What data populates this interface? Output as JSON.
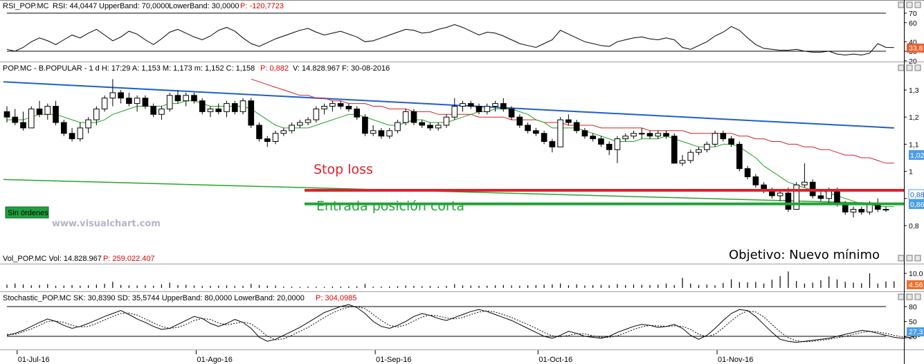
{
  "colors": {
    "up_candle": "#ffffff",
    "down_candle": "#000000",
    "rsi_line": "#000000",
    "sma_short": "#20a020",
    "sma_long": "#d02020",
    "trend_blue": "#1f5fc8",
    "support_green": "#28a428",
    "stop_red": "#e0202a",
    "entry_green": "#22a238",
    "stoch_k": "#000000",
    "stoch_d": "#000000",
    "price_tag_blue": "#4a9ee8",
    "price_tag_orange": "#f07030",
    "rsi_tag_orange": "#e86030"
  },
  "rsi_panel": {
    "symbol": "RSI_POP.MC",
    "rsi_label": "RSI: 44,0447",
    "upper_label": "UpperBand: 70,0000",
    "lower_label": "LowerBand: 30,0000",
    "p_label": "P: -120,7723",
    "ticks": [
      "70",
      "60",
      "40",
      "30",
      "20"
    ],
    "last_tag": "33,8"
  },
  "price_panel": {
    "header_main": "POP.MC - B.POPULAR - 1 d  H: 17:29  A: 1,153  M: 1,173  m: 1,152  C: 1,158",
    "header_p": "P: 0,882",
    "header_tail": "V: 14.828.967  F: 30-08-2016",
    "ticks": [
      "1,3",
      "1,2",
      "1,1",
      "1",
      "0,9",
      "0,8"
    ],
    "tag_upper": "1,02",
    "tag_mid": "0,88",
    "tag_lower": "0,86",
    "stop_label": "Stop loss",
    "entry_label": "Entrada posición corta",
    "target_label": "Objetivo: Nuevo mínimo",
    "orders_badge": "Sin órdenes",
    "watermark": "www.visualchart.com"
  },
  "volume_panel": {
    "header_main": "Vol_POP.MC  Vol: 14.828.967",
    "header_p": "P: 259.022.407",
    "ticks": [
      "10.0"
    ],
    "last_tag": "4.56"
  },
  "stoch_panel": {
    "header_main": "Stochastic_POP.MC  SK: 30,8390  SD: 35,5744  UpperBand: 80,0000  LowerBand: 20,0000",
    "header_p": "P: 304,0985",
    "ticks": [
      "80",
      "50",
      "20"
    ],
    "last_tag": "27,3"
  },
  "x_axis": {
    "labels": [
      "01-Jul-16",
      "01-Ago-16",
      "01-Sep-16",
      "01-Oct-16",
      "01-Nov-16"
    ]
  },
  "chart_data": {
    "type": "candlestick",
    "period": "1 d",
    "symbol": "POP.MC - B.POPULAR",
    "candles_ohlc": [
      [
        1.22,
        1.24,
        1.18,
        1.2
      ],
      [
        1.2,
        1.23,
        1.17,
        1.18
      ],
      [
        1.18,
        1.22,
        1.15,
        1.16
      ],
      [
        1.16,
        1.24,
        1.16,
        1.23
      ],
      [
        1.23,
        1.26,
        1.2,
        1.21
      ],
      [
        1.21,
        1.25,
        1.19,
        1.24
      ],
      [
        1.24,
        1.26,
        1.17,
        1.18
      ],
      [
        1.18,
        1.19,
        1.13,
        1.14
      ],
      [
        1.14,
        1.16,
        1.11,
        1.12
      ],
      [
        1.12,
        1.18,
        1.11,
        1.16
      ],
      [
        1.16,
        1.2,
        1.14,
        1.19
      ],
      [
        1.19,
        1.24,
        1.17,
        1.23
      ],
      [
        1.23,
        1.28,
        1.22,
        1.27
      ],
      [
        1.27,
        1.34,
        1.24,
        1.29
      ],
      [
        1.29,
        1.3,
        1.25,
        1.27
      ],
      [
        1.27,
        1.29,
        1.24,
        1.25
      ],
      [
        1.25,
        1.28,
        1.22,
        1.27
      ],
      [
        1.27,
        1.28,
        1.23,
        1.24
      ],
      [
        1.24,
        1.25,
        1.2,
        1.21
      ],
      [
        1.21,
        1.24,
        1.19,
        1.23
      ],
      [
        1.23,
        1.29,
        1.22,
        1.28
      ],
      [
        1.28,
        1.3,
        1.25,
        1.26
      ],
      [
        1.26,
        1.29,
        1.24,
        1.28
      ],
      [
        1.28,
        1.29,
        1.25,
        1.26
      ],
      [
        1.26,
        1.27,
        1.21,
        1.22
      ],
      [
        1.22,
        1.24,
        1.2,
        1.23
      ],
      [
        1.23,
        1.25,
        1.21,
        1.22
      ],
      [
        1.22,
        1.26,
        1.2,
        1.25
      ],
      [
        1.25,
        1.26,
        1.21,
        1.22
      ],
      [
        1.22,
        1.27,
        1.21,
        1.26
      ],
      [
        1.26,
        1.27,
        1.16,
        1.17
      ],
      [
        1.17,
        1.18,
        1.11,
        1.12
      ],
      [
        1.12,
        1.13,
        1.09,
        1.11
      ],
      [
        1.11,
        1.15,
        1.1,
        1.14
      ],
      [
        1.14,
        1.16,
        1.13,
        1.15
      ],
      [
        1.15,
        1.18,
        1.14,
        1.17
      ],
      [
        1.17,
        1.19,
        1.16,
        1.18
      ],
      [
        1.18,
        1.2,
        1.17,
        1.19
      ],
      [
        1.19,
        1.24,
        1.18,
        1.23
      ],
      [
        1.23,
        1.25,
        1.21,
        1.24
      ],
      [
        1.24,
        1.26,
        1.22,
        1.25
      ],
      [
        1.25,
        1.26,
        1.23,
        1.24
      ],
      [
        1.24,
        1.25,
        1.22,
        1.23
      ],
      [
        1.23,
        1.24,
        1.19,
        1.2
      ],
      [
        1.2,
        1.21,
        1.13,
        1.14
      ],
      [
        1.14,
        1.17,
        1.13,
        1.15
      ],
      [
        1.15,
        1.16,
        1.12,
        1.13
      ],
      [
        1.13,
        1.16,
        1.12,
        1.15
      ],
      [
        1.15,
        1.19,
        1.14,
        1.18
      ],
      [
        1.18,
        1.23,
        1.17,
        1.22
      ],
      [
        1.22,
        1.23,
        1.17,
        1.18
      ],
      [
        1.18,
        1.19,
        1.16,
        1.17
      ],
      [
        1.17,
        1.18,
        1.15,
        1.16
      ],
      [
        1.16,
        1.18,
        1.15,
        1.17
      ],
      [
        1.17,
        1.21,
        1.16,
        1.2
      ],
      [
        1.2,
        1.27,
        1.19,
        1.24
      ],
      [
        1.24,
        1.26,
        1.22,
        1.25
      ],
      [
        1.25,
        1.26,
        1.23,
        1.24
      ],
      [
        1.24,
        1.25,
        1.21,
        1.22
      ],
      [
        1.22,
        1.25,
        1.21,
        1.24
      ],
      [
        1.24,
        1.26,
        1.22,
        1.25
      ],
      [
        1.25,
        1.27,
        1.22,
        1.23
      ],
      [
        1.23,
        1.24,
        1.19,
        1.2
      ],
      [
        1.2,
        1.21,
        1.16,
        1.17
      ],
      [
        1.17,
        1.18,
        1.14,
        1.15
      ],
      [
        1.15,
        1.16,
        1.13,
        1.14
      ],
      [
        1.14,
        1.15,
        1.1,
        1.11
      ],
      [
        1.11,
        1.12,
        1.07,
        1.09
      ],
      [
        1.09,
        1.2,
        1.09,
        1.19
      ],
      [
        1.19,
        1.21,
        1.17,
        1.18
      ],
      [
        1.18,
        1.19,
        1.14,
        1.15
      ],
      [
        1.15,
        1.16,
        1.12,
        1.13
      ],
      [
        1.13,
        1.14,
        1.11,
        1.12
      ],
      [
        1.12,
        1.13,
        1.09,
        1.1
      ],
      [
        1.1,
        1.11,
        1.06,
        1.08
      ],
      [
        1.08,
        1.13,
        1.03,
        1.12
      ],
      [
        1.12,
        1.14,
        1.11,
        1.13
      ],
      [
        1.13,
        1.15,
        1.12,
        1.14
      ],
      [
        1.14,
        1.16,
        1.12,
        1.14
      ],
      [
        1.14,
        1.15,
        1.12,
        1.13
      ],
      [
        1.13,
        1.15,
        1.12,
        1.14
      ],
      [
        1.14,
        1.15,
        1.12,
        1.13
      ],
      [
        1.13,
        1.14,
        1.07,
        1.03
      ],
      [
        1.03,
        1.06,
        1.02,
        1.04
      ],
      [
        1.04,
        1.08,
        1.03,
        1.07
      ],
      [
        1.07,
        1.09,
        1.06,
        1.08
      ],
      [
        1.08,
        1.11,
        1.07,
        1.1
      ],
      [
        1.1,
        1.15,
        1.09,
        1.14
      ],
      [
        1.14,
        1.15,
        1.11,
        1.12
      ],
      [
        1.12,
        1.13,
        1.09,
        1.1
      ],
      [
        1.1,
        1.11,
        1.0,
        1.01
      ],
      [
        1.01,
        1.02,
        0.97,
        0.98
      ],
      [
        0.98,
        0.99,
        0.94,
        0.95
      ],
      [
        0.95,
        0.96,
        0.92,
        0.93
      ],
      [
        0.93,
        0.94,
        0.9,
        0.91
      ],
      [
        0.91,
        0.93,
        0.89,
        0.92
      ],
      [
        0.92,
        0.94,
        0.85,
        0.86
      ],
      [
        0.86,
        0.96,
        0.86,
        0.95
      ],
      [
        0.95,
        1.03,
        0.94,
        0.96
      ],
      [
        0.96,
        0.97,
        0.9,
        0.91
      ],
      [
        0.91,
        0.93,
        0.89,
        0.9
      ],
      [
        0.9,
        0.94,
        0.88,
        0.93
      ],
      [
        0.93,
        0.94,
        0.87,
        0.88
      ],
      [
        0.88,
        0.89,
        0.84,
        0.85
      ],
      [
        0.85,
        0.87,
        0.83,
        0.86
      ],
      [
        0.86,
        0.87,
        0.84,
        0.85
      ],
      [
        0.85,
        0.89,
        0.84,
        0.88
      ],
      [
        0.88,
        0.9,
        0.85,
        0.86
      ],
      [
        0.86,
        0.87,
        0.85,
        0.86
      ]
    ],
    "rsi": [
      32,
      30,
      34,
      40,
      44,
      41,
      37,
      42,
      47,
      44,
      49,
      53,
      47,
      41,
      45,
      51,
      48,
      42,
      37,
      43,
      50,
      53,
      49,
      45,
      42,
      46,
      52,
      55,
      51,
      44,
      38,
      35,
      39,
      43,
      46,
      49,
      52,
      54,
      50,
      47,
      49,
      51,
      48,
      45,
      40,
      41,
      44,
      47,
      50,
      53,
      52,
      49,
      50,
      53,
      55,
      58,
      55,
      51,
      47,
      50,
      49,
      46,
      42,
      38,
      36,
      34,
      38,
      42,
      52,
      48,
      44,
      40,
      38,
      36,
      35,
      40,
      42,
      44,
      45,
      43,
      42,
      44,
      42,
      34,
      32,
      36,
      40,
      46,
      50,
      56,
      52,
      44,
      37,
      33,
      32,
      31,
      31,
      32,
      30,
      29,
      29,
      30,
      27,
      26,
      27,
      26,
      28,
      38,
      34,
      33.8
    ],
    "sma_short": [
      1.19,
      1.19,
      1.19,
      1.2,
      1.21,
      1.21,
      1.21,
      1.2,
      1.19,
      1.18,
      1.18,
      1.18,
      1.19,
      1.21,
      1.22,
      1.23,
      1.24,
      1.24,
      1.24,
      1.24,
      1.25,
      1.25,
      1.26,
      1.26,
      1.25,
      1.24,
      1.24,
      1.24,
      1.24,
      1.24,
      1.23,
      1.21,
      1.19,
      1.17,
      1.16,
      1.16,
      1.16,
      1.16,
      1.17,
      1.18,
      1.19,
      1.2,
      1.21,
      1.21,
      1.2,
      1.19,
      1.18,
      1.17,
      1.17,
      1.18,
      1.19,
      1.19,
      1.18,
      1.18,
      1.18,
      1.19,
      1.2,
      1.21,
      1.22,
      1.22,
      1.23,
      1.23,
      1.23,
      1.22,
      1.21,
      1.19,
      1.18,
      1.16,
      1.16,
      1.16,
      1.16,
      1.15,
      1.14,
      1.13,
      1.12,
      1.11,
      1.11,
      1.11,
      1.12,
      1.12,
      1.12,
      1.13,
      1.12,
      1.11,
      1.1,
      1.09,
      1.09,
      1.09,
      1.1,
      1.1,
      1.09,
      1.07,
      1.05,
      1.02,
      1.0,
      0.98,
      0.96,
      0.95,
      0.94,
      0.93,
      0.93,
      0.92,
      0.91,
      0.9,
      0.89,
      0.88,
      0.88,
      0.87,
      0.87,
      0.87
    ],
    "sma_long": [
      null,
      null,
      null,
      null,
      null,
      null,
      null,
      null,
      null,
      null,
      null,
      null,
      null,
      null,
      null,
      null,
      null,
      null,
      null,
      null,
      null,
      null,
      null,
      null,
      null,
      null,
      null,
      null,
      null,
      null,
      1.34,
      1.33,
      1.32,
      1.31,
      1.3,
      1.29,
      1.28,
      1.28,
      1.27,
      1.27,
      1.26,
      1.26,
      1.25,
      1.25,
      1.25,
      1.24,
      1.24,
      1.23,
      1.23,
      1.23,
      1.22,
      1.22,
      1.22,
      1.21,
      1.21,
      1.21,
      1.21,
      1.21,
      1.2,
      1.2,
      1.2,
      1.2,
      1.19,
      1.19,
      1.19,
      1.19,
      1.18,
      1.18,
      1.18,
      1.17,
      1.17,
      1.17,
      1.17,
      1.16,
      1.16,
      1.16,
      1.16,
      1.16,
      1.16,
      1.15,
      1.15,
      1.15,
      1.15,
      1.15,
      1.14,
      1.14,
      1.14,
      1.14,
      1.14,
      1.14,
      1.13,
      1.13,
      1.12,
      1.12,
      1.11,
      1.11,
      1.1,
      1.1,
      1.09,
      1.09,
      1.08,
      1.08,
      1.07,
      1.06,
      1.06,
      1.05,
      1.05,
      1.04,
      1.03,
      1.03
    ],
    "trendline_blue": {
      "from": [
        0,
        1.33
      ],
      "to": [
        109,
        1.16
      ]
    },
    "trendline_green": {
      "from": [
        0,
        0.97
      ],
      "to": [
        109,
        0.88
      ]
    },
    "stop_loss_level": 0.93,
    "entry_level": 0.88,
    "volume": [
      2.2,
      3.0,
      2.4,
      1.8,
      2.0,
      2.6,
      1.4,
      1.6,
      1.9,
      1.5,
      1.8,
      2.3,
      2.8,
      4.2,
      2.0,
      1.7,
      1.6,
      1.8,
      1.5,
      2.4,
      3.6,
      1.9,
      2.1,
      1.6,
      1.3,
      1.4,
      1.5,
      1.7,
      1.3,
      1.4,
      2.8,
      2.0,
      1.5,
      1.6,
      0.9,
      0.8,
      0.7,
      0.9,
      0.8,
      0.7,
      1.0,
      0.9,
      1.0,
      1.1,
      2.7,
      0.9,
      0.9,
      1.0,
      1.2,
      1.6,
      1.4,
      1.2,
      1.3,
      1.0,
      1.4,
      2.6,
      1.7,
      1.6,
      1.4,
      1.5,
      1.8,
      2.0,
      1.7,
      1.5,
      1.8,
      1.9,
      2.2,
      2.4,
      3.0,
      1.8,
      2.4,
      1.7,
      1.9,
      2.0,
      1.8,
      2.6,
      2.0,
      2.3,
      2.1,
      1.9,
      2.2,
      3.0,
      2.0,
      6.9,
      3.0,
      2.0,
      2.3,
      1.8,
      3.4,
      5.9,
      4.0,
      3.9,
      4.1,
      3.0,
      5.6,
      8.1,
      11.3,
      4.7,
      3.0,
      3.6,
      5.2,
      7.9,
      5.8,
      4.2,
      3.6,
      3.2,
      10.0,
      3.0,
      4.5,
      4.56
    ],
    "stoch_k": [
      22,
      26,
      32,
      40,
      48,
      55,
      50,
      42,
      36,
      40,
      46,
      53,
      60,
      66,
      72,
      64,
      55,
      48,
      40,
      34,
      36,
      44,
      52,
      60,
      56,
      46,
      40,
      46,
      54,
      48,
      36,
      18,
      10,
      14,
      22,
      30,
      38,
      48,
      58,
      68,
      74,
      80,
      84,
      78,
      66,
      50,
      40,
      36,
      42,
      50,
      60,
      66,
      62,
      56,
      52,
      58,
      64,
      70,
      74,
      70,
      64,
      58,
      52,
      44,
      36,
      28,
      20,
      16,
      22,
      30,
      26,
      20,
      18,
      16,
      20,
      28,
      34,
      40,
      44,
      42,
      38,
      40,
      44,
      36,
      22,
      14,
      22,
      36,
      52,
      66,
      74,
      72,
      60,
      44,
      28,
      14,
      10,
      8,
      10,
      12,
      14,
      16,
      20,
      24,
      28,
      32,
      30,
      26,
      22,
      18,
      16,
      18,
      22,
      28,
      30.8
    ],
    "stoch_d": [
      24,
      24,
      29,
      35,
      42,
      50,
      51,
      48,
      42,
      39,
      40,
      46,
      53,
      60,
      66,
      67,
      63,
      55,
      47,
      40,
      36,
      38,
      44,
      52,
      56,
      54,
      47,
      43,
      46,
      49,
      45,
      34,
      20,
      13,
      15,
      22,
      30,
      38,
      48,
      58,
      67,
      74,
      79,
      80,
      76,
      64,
      52,
      42,
      39,
      43,
      51,
      59,
      63,
      61,
      57,
      55,
      58,
      64,
      69,
      71,
      69,
      64,
      58,
      51,
      44,
      36,
      28,
      21,
      19,
      22,
      25,
      25,
      21,
      18,
      18,
      21,
      27,
      34,
      39,
      42,
      41,
      40,
      41,
      40,
      34,
      24,
      19,
      24,
      37,
      51,
      64,
      71,
      69,
      59,
      44,
      29,
      17,
      11,
      9,
      10,
      12,
      14,
      17,
      20,
      24,
      28,
      30,
      29,
      26,
      22,
      19,
      18,
      19,
      23,
      26,
      35.6
    ]
  }
}
